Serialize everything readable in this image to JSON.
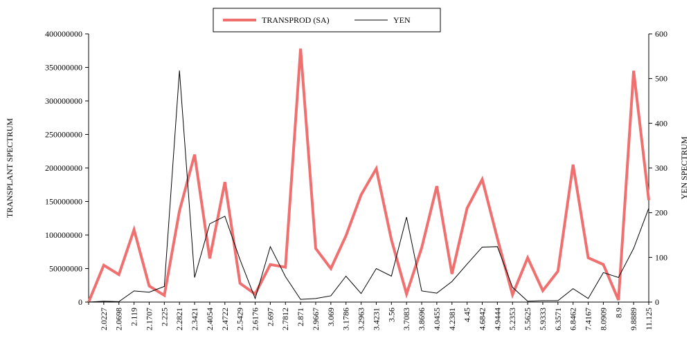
{
  "chart_data": {
    "type": "line",
    "categories": [
      null,
      "2.0227",
      "2.0698",
      "2.119",
      "2.1707",
      "2.225",
      "2.2821",
      "2.3421",
      "2.4054",
      "2.4722",
      "2.5429",
      "2.6176",
      "2.697",
      "2.7812",
      "2.871",
      "2.9667",
      "3.069",
      "3.1786",
      "3.2963",
      "3.4231",
      "3.56",
      "3.7083",
      "3.8696",
      "4.0455",
      "4.2381",
      "4.45",
      "4.6842",
      "4.9444",
      "5.2353",
      "5.5625",
      "5.9333",
      "6.3571",
      "6.8462",
      "7.4167",
      "8.0909",
      "8.9",
      "9.8889",
      "11.125"
    ],
    "series": [
      {
        "name": "TRANSPROD (SA)",
        "color": "#f07070",
        "axis": "y",
        "values": [
          0,
          55000000,
          41000000,
          108000000,
          24000000,
          10000000,
          136000000,
          220000000,
          65000000,
          179000000,
          28000000,
          12000000,
          56000000,
          52000000,
          378000000,
          80000000,
          50000000,
          99000000,
          160000000,
          199000000,
          93000000,
          12000000,
          81000000,
          173000000,
          42000000,
          140000000,
          183000000,
          95000000,
          11000000,
          66000000,
          17000000,
          46000000,
          205000000,
          66000000,
          56000000,
          3000000,
          345000000,
          152000000
        ]
      },
      {
        "name": "YEN",
        "color": "#000000",
        "axis": "y2",
        "values": [
          0,
          2,
          1,
          25,
          22,
          35,
          518,
          55,
          175,
          192,
          95,
          8,
          124,
          57,
          6,
          8,
          14,
          58,
          19,
          75,
          58,
          190,
          25,
          20,
          46,
          85,
          123,
          124,
          33,
          2,
          3,
          3,
          30,
          8,
          66,
          55,
          120,
          210
        ]
      }
    ],
    "y_label": "TRANSPLANT SPECTRUM",
    "y2_label": "YEN SPECTRUM",
    "ylim": [
      0,
      400000000
    ],
    "yticks": [
      0,
      50000000,
      100000000,
      150000000,
      200000000,
      250000000,
      300000000,
      350000000,
      400000000
    ],
    "y2lim": [
      0,
      600
    ],
    "y2ticks": [
      0,
      100,
      200,
      300,
      400,
      500,
      600
    ],
    "legend": "top"
  }
}
